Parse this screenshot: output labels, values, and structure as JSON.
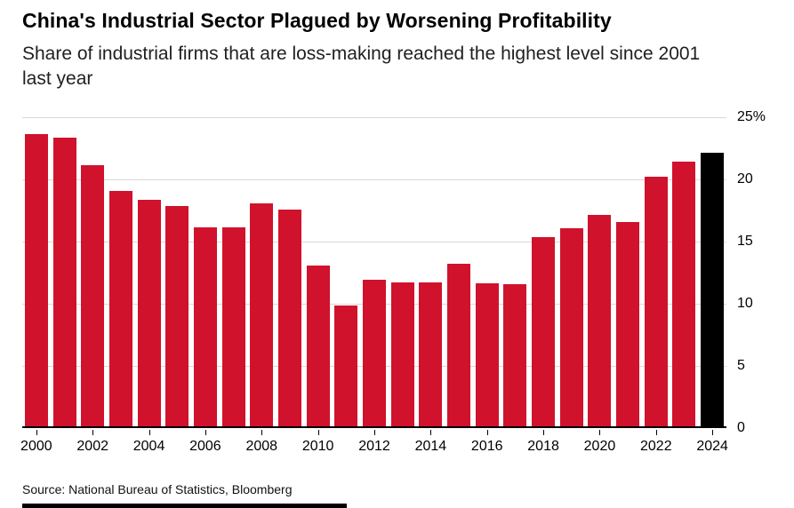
{
  "header": {
    "title": "China's Industrial Sector Plagued by Worsening Profitability",
    "subtitle": "Share of industrial firms that are loss-making reached the highest level since 2001 last year"
  },
  "chart_data": {
    "type": "bar",
    "title": "China's Industrial Sector Plagued by Worsening Profitability",
    "subtitle": "Share of industrial firms that are loss-making reached the highest level since 2001 last year",
    "categories": [
      "2000",
      "2001",
      "2002",
      "2003",
      "2004",
      "2005",
      "2006",
      "2007",
      "2008",
      "2009",
      "2010",
      "2011",
      "2012",
      "2013",
      "2014",
      "2015",
      "2016",
      "2017",
      "2018",
      "2019",
      "2020",
      "2021",
      "2022",
      "2023",
      "2024"
    ],
    "values": [
      23.5,
      23.2,
      21.0,
      18.9,
      18.2,
      17.7,
      16.0,
      16.0,
      17.9,
      17.4,
      12.9,
      9.7,
      11.8,
      11.6,
      11.6,
      13.1,
      11.5,
      11.4,
      15.2,
      15.9,
      17.0,
      16.4,
      20.1,
      21.3,
      22.0
    ],
    "unit": "%",
    "ylim": [
      0,
      25
    ],
    "yticks": [
      0,
      5,
      10,
      15,
      20,
      25
    ],
    "ytick_labels": [
      "0",
      "5",
      "10",
      "15",
      "20",
      "25%"
    ],
    "xtick_labels": [
      "2000",
      "2002",
      "2004",
      "2006",
      "2008",
      "2010",
      "2012",
      "2014",
      "2016",
      "2018",
      "2020",
      "2022",
      "2024"
    ],
    "bar_color": "#d0122c",
    "highlight_year": "2024",
    "highlight_color": "#000000",
    "grid": "horizontal",
    "legend": false,
    "legend_position": "none",
    "ylabel": "",
    "xlabel": ""
  },
  "footer": {
    "source": "Source: National Bureau of Statistics, Bloomberg"
  }
}
